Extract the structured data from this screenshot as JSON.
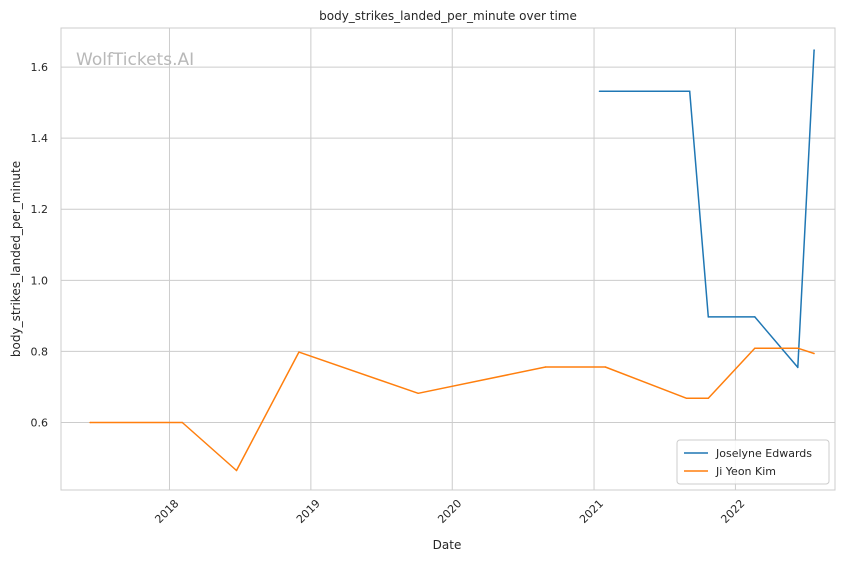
{
  "watermark": "WolfTickets.AI",
  "colors": {
    "series_1": "#1f77b4",
    "series_2": "#ff7f0e",
    "grid": "#cccccc",
    "frame": "#cccccc",
    "background": "#ffffff"
  },
  "chart_data": {
    "type": "line",
    "title": "body_strikes_landed_per_minute over time",
    "xlabel": "Date",
    "ylabel": "body_strikes_landed_per_minute",
    "x_tick_labels": [
      "2018",
      "2019",
      "2020",
      "2021",
      "2022"
    ],
    "y_tick_labels": [
      "0.6",
      "0.8",
      "1.0",
      "1.2",
      "1.4",
      "1.6"
    ],
    "xlim": [
      "2017-03-27",
      "2022-09-15"
    ],
    "ylim": [
      0.41,
      1.71
    ],
    "grid": true,
    "legend_position": "bottom-right",
    "series": [
      {
        "name": "Joselyne Edwards",
        "color": "#1f77b4",
        "points": [
          {
            "x": "2021-01-15",
            "y": 1.532
          },
          {
            "x": "2021-09-05",
            "y": 1.532
          },
          {
            "x": "2021-10-23",
            "y": 0.897
          },
          {
            "x": "2022-02-20",
            "y": 0.897
          },
          {
            "x": "2022-06-11",
            "y": 0.755
          },
          {
            "x": "2022-07-23",
            "y": 1.648
          }
        ]
      },
      {
        "name": "Ji Yeon Kim",
        "color": "#ff7f0e",
        "points": [
          {
            "x": "2017-06-10",
            "y": 0.6
          },
          {
            "x": "2018-02-03",
            "y": 0.6
          },
          {
            "x": "2018-06-23",
            "y": 0.465
          },
          {
            "x": "2018-12-01",
            "y": 0.798
          },
          {
            "x": "2019-10-05",
            "y": 0.682
          },
          {
            "x": "2020-08-29",
            "y": 0.756
          },
          {
            "x": "2021-01-30",
            "y": 0.756
          },
          {
            "x": "2021-08-28",
            "y": 0.668
          },
          {
            "x": "2021-10-23",
            "y": 0.668
          },
          {
            "x": "2022-02-20",
            "y": 0.809
          },
          {
            "x": "2022-06-11",
            "y": 0.809
          },
          {
            "x": "2022-07-23",
            "y": 0.794
          }
        ]
      }
    ]
  }
}
